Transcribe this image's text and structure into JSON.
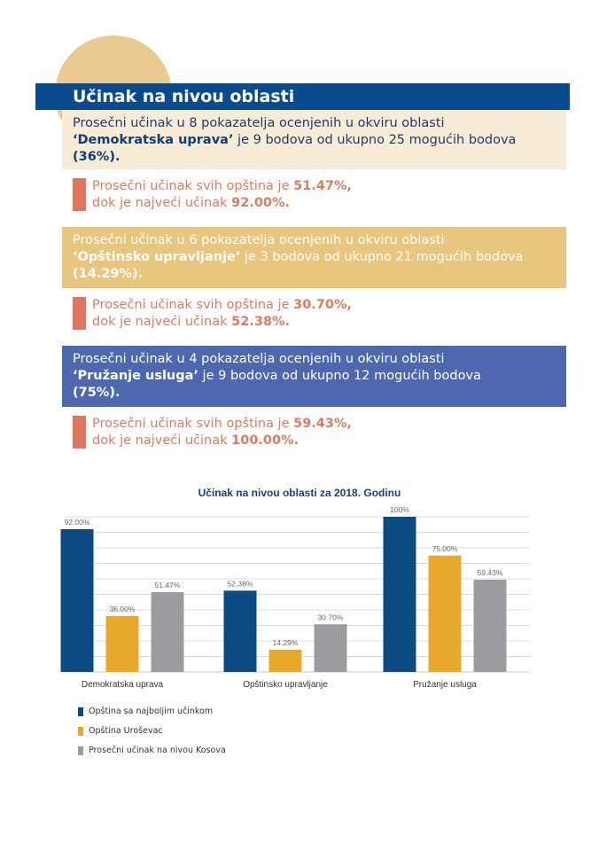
{
  "header": {
    "title": "Učinak na nivou oblasti"
  },
  "sections": [
    {
      "line1": "Prosečni učinak u 8 pokazatelja ocenjenih u okviru oblasti",
      "name": "‘Demokratska uprava’",
      "line2": " je 9 bodova od ukupno 25 mogućih bodova",
      "pct": "(36%).",
      "stat_a": "Prosečni učinak svih opština je ",
      "stat_a_val": "51.47%,",
      "stat_b": "dok je najveći učinak ",
      "stat_b_val": "92.00%."
    },
    {
      "line1": "Prosečni učinak u 6 pokazatelja ocenjenih u okviru oblasti",
      "name": "‘Opštinsko upravljanje’",
      "line2": " je 3 bodova od ukupno 21 mogućih bodova",
      "pct": "(14.29%).",
      "stat_a": "Prosečni učinak svih opština je ",
      "stat_a_val": "30.70%,",
      "stat_b": "dok je najveći učinak ",
      "stat_b_val": "52.38%."
    },
    {
      "line1": "Prosečni učinak u 4 pokazatelja ocenjenih u okviru oblasti",
      "name": "‘Pružanje usluga’",
      "line2": " je 9 bodova od ukupno 12 mogućih bodova",
      "pct": " (75%).",
      "stat_a": "Prosečni učinak svih opština je ",
      "stat_a_val": "59.43%,",
      "stat_b": "dok je najveći učinak ",
      "stat_b_val": "100.00%."
    }
  ],
  "chart_data": {
    "type": "bar",
    "title": "Učinak na nivou oblasti za 2018. Godinu",
    "categories": [
      "Demokratska uprava",
      "Opštinsko upravljanje",
      "Pružanje usluga"
    ],
    "series": [
      {
        "name": "Opština sa najboljim učinkom",
        "color": "#0b4a83",
        "values": [
          92.0,
          52.38,
          100
        ],
        "labels": [
          "92.00%",
          "52.38%",
          "100%"
        ]
      },
      {
        "name": "Opština Uroševac",
        "color": "#e6a92b",
        "values": [
          36.0,
          14.29,
          75.0
        ],
        "labels": [
          "36.00%",
          "14.29%",
          "75.00%"
        ]
      },
      {
        "name": "Prosečni učinak na nivou Kosova",
        "color": "#9c9ca0",
        "values": [
          51.47,
          30.7,
          59.43
        ],
        "labels": [
          "51.47%",
          "30.70%",
          "59.43%"
        ]
      }
    ],
    "ylim": [
      0,
      100
    ],
    "grid": true,
    "legend_position": "bottom-left"
  }
}
